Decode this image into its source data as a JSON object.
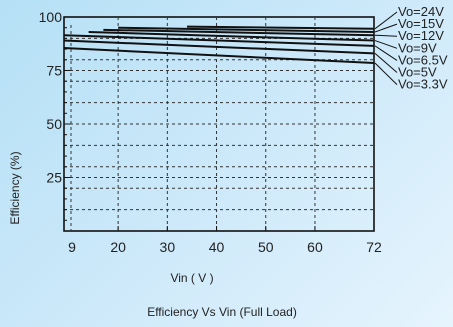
{
  "chart_data": {
    "type": "line",
    "title": "Efficiency  Vs Vin (Full Load)",
    "xlabel": "Vin ( V )",
    "ylabel": "Efficiency (%)",
    "xlim": [
      9,
      72
    ],
    "ylim": [
      0,
      100
    ],
    "x_ticks": [
      9,
      20,
      30,
      40,
      50,
      60,
      72
    ],
    "x_tick_labels": [
      "9",
      "20",
      "30",
      "40",
      "50",
      "60",
      "72"
    ],
    "y_ticks": [
      25,
      50,
      75,
      100
    ],
    "y_tick_labels": [
      "25",
      "50",
      "75",
      "100"
    ],
    "grid": true,
    "legend_position": "right",
    "line_color": "#111111",
    "series": [
      {
        "name": "Vo=24V",
        "x": [
          34,
          72
        ],
        "y": [
          95.5,
          94.5
        ]
      },
      {
        "name": "Vo=15V",
        "x": [
          20,
          72
        ],
        "y": [
          95,
          93
        ]
      },
      {
        "name": "Vo=12V",
        "x": [
          17,
          72
        ],
        "y": [
          94,
          91.5
        ]
      },
      {
        "name": "Vo=9V",
        "x": [
          14,
          72
        ],
        "y": [
          93,
          89
        ]
      },
      {
        "name": "Vo=6.5V",
        "x": [
          9,
          72
        ],
        "y": [
          91.5,
          86.5
        ]
      },
      {
        "name": "Vo=5V",
        "x": [
          9,
          72
        ],
        "y": [
          89,
          83
        ]
      },
      {
        "name": "Vo=3.3V",
        "x": [
          9,
          72
        ],
        "y": [
          85.5,
          78.5
        ]
      }
    ]
  }
}
